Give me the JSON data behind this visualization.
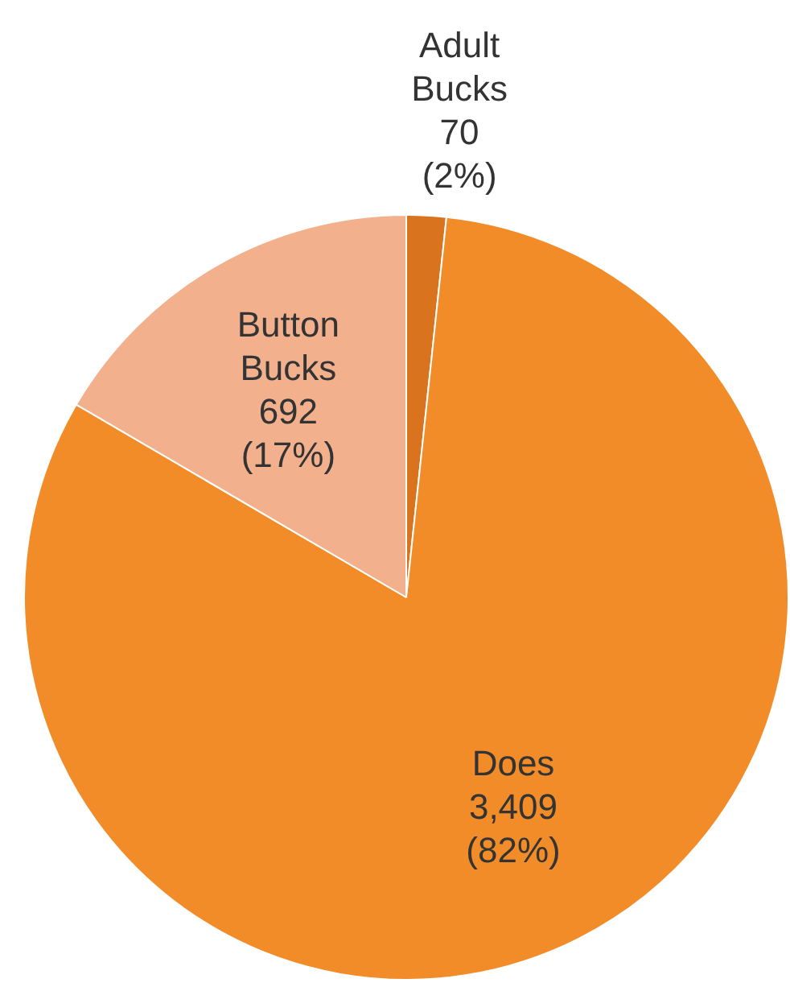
{
  "chart_data": {
    "type": "pie",
    "categories": [
      "Adult Bucks",
      "Does",
      "Button Bucks"
    ],
    "values": [
      70,
      3409,
      692
    ],
    "value_labels": [
      "70 (2%)",
      "3,409 (82%)",
      "692 (17%)"
    ],
    "colors": [
      "#d9731e",
      "#f28c28",
      "#f2b08c"
    ],
    "legend": false
  }
}
